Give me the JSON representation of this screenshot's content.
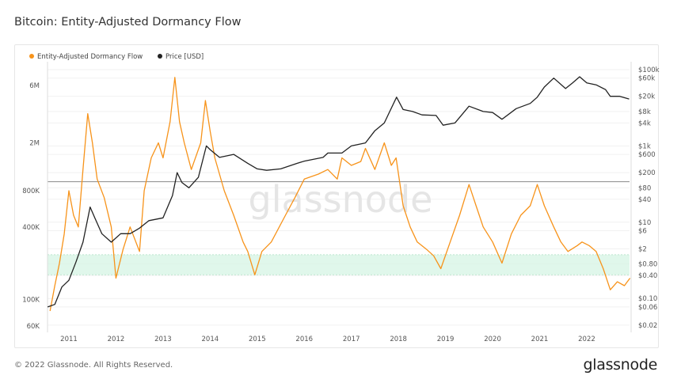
{
  "title": "Bitcoin: Entity-Adjusted Dormancy Flow",
  "footer": "© 2022 Glassnode. All Rights Reserved.",
  "logo": "glassnode",
  "watermark": "glassnode",
  "chart_data": {
    "type": "line",
    "title": "Bitcoin: Entity-Adjusted Dormancy Flow",
    "legend_placement": "top-left",
    "grid": true,
    "x_ticks": [
      "2011",
      "2012",
      "2013",
      "2014",
      "2015",
      "2016",
      "2017",
      "2018",
      "2019",
      "2020",
      "2021",
      "2022"
    ],
    "xlim": [
      2010.55,
      2022.95
    ],
    "left_axis": {
      "scale": "log",
      "ylim": [
        55000,
        8000000
      ],
      "ticks": [
        {
          "v": 6000000,
          "label": "6M"
        },
        {
          "v": 2000000,
          "label": "2M"
        },
        {
          "v": 800000,
          "label": "800K"
        },
        {
          "v": 400000,
          "label": "400K"
        },
        {
          "v": 100000,
          "label": "100K"
        },
        {
          "v": 60000,
          "label": "60K"
        }
      ]
    },
    "right_axis": {
      "scale": "log",
      "ylim": [
        0.02,
        100000
      ],
      "ticks": [
        {
          "v": 100000,
          "label": "$100k"
        },
        {
          "v": 60000,
          "label": "$60k"
        },
        {
          "v": 20000,
          "label": "$20k"
        },
        {
          "v": 8000,
          "label": "$8k"
        },
        {
          "v": 4000,
          "label": "$4k"
        },
        {
          "v": 1000,
          "label": "$1k"
        },
        {
          "v": 600,
          "label": "$600"
        },
        {
          "v": 200,
          "label": "$200"
        },
        {
          "v": 80,
          "label": "$80"
        },
        {
          "v": 40,
          "label": "$40"
        },
        {
          "v": 10,
          "label": "$10"
        },
        {
          "v": 6,
          "label": "$6"
        },
        {
          "v": 2,
          "label": "$2"
        },
        {
          "v": 0.8,
          "label": "$0.80"
        },
        {
          "v": 0.4,
          "label": "$0.40"
        },
        {
          "v": 0.1,
          "label": "$0.10"
        },
        {
          "v": 0.06,
          "label": "$0.06"
        },
        {
          "v": 0.02,
          "label": "$0.02"
        }
      ]
    },
    "reference_line": 950000,
    "band": [
      160000,
      235000
    ],
    "colors": {
      "dormancy": "#f7931a",
      "price": "#222222",
      "band": "#d8f5e6",
      "ref": "#888888"
    },
    "series": [
      {
        "name": "Entity-Adjusted Dormancy Flow",
        "axis": "left",
        "points": [
          [
            2010.6,
            80000
          ],
          [
            2010.7,
            130000
          ],
          [
            2010.8,
            200000
          ],
          [
            2010.9,
            350000
          ],
          [
            2011.0,
            800000
          ],
          [
            2011.1,
            500000
          ],
          [
            2011.2,
            400000
          ],
          [
            2011.3,
            1200000
          ],
          [
            2011.4,
            3500000
          ],
          [
            2011.5,
            2000000
          ],
          [
            2011.6,
            1000000
          ],
          [
            2011.75,
            700000
          ],
          [
            2011.9,
            400000
          ],
          [
            2012.0,
            150000
          ],
          [
            2012.15,
            260000
          ],
          [
            2012.3,
            400000
          ],
          [
            2012.5,
            250000
          ],
          [
            2012.6,
            800000
          ],
          [
            2012.75,
            1500000
          ],
          [
            2012.9,
            2000000
          ],
          [
            2013.0,
            1500000
          ],
          [
            2013.15,
            3000000
          ],
          [
            2013.25,
            7000000
          ],
          [
            2013.35,
            3000000
          ],
          [
            2013.45,
            2000000
          ],
          [
            2013.6,
            1200000
          ],
          [
            2013.8,
            2000000
          ],
          [
            2013.9,
            4500000
          ],
          [
            2014.0,
            2500000
          ],
          [
            2014.1,
            1500000
          ],
          [
            2014.3,
            800000
          ],
          [
            2014.5,
            500000
          ],
          [
            2014.7,
            300000
          ],
          [
            2014.8,
            250000
          ],
          [
            2014.95,
            160000
          ],
          [
            2015.1,
            250000
          ],
          [
            2015.3,
            300000
          ],
          [
            2015.6,
            500000
          ],
          [
            2015.8,
            700000
          ],
          [
            2016.0,
            1000000
          ],
          [
            2016.3,
            1100000
          ],
          [
            2016.5,
            1200000
          ],
          [
            2016.7,
            1000000
          ],
          [
            2016.8,
            1500000
          ],
          [
            2017.0,
            1300000
          ],
          [
            2017.2,
            1400000
          ],
          [
            2017.3,
            1800000
          ],
          [
            2017.5,
            1200000
          ],
          [
            2017.7,
            2000000
          ],
          [
            2017.85,
            1300000
          ],
          [
            2017.95,
            1500000
          ],
          [
            2018.1,
            600000
          ],
          [
            2018.25,
            400000
          ],
          [
            2018.4,
            300000
          ],
          [
            2018.6,
            260000
          ],
          [
            2018.75,
            230000
          ],
          [
            2018.9,
            180000
          ],
          [
            2019.1,
            300000
          ],
          [
            2019.3,
            500000
          ],
          [
            2019.5,
            900000
          ],
          [
            2019.65,
            600000
          ],
          [
            2019.8,
            400000
          ],
          [
            2020.0,
            300000
          ],
          [
            2020.2,
            200000
          ],
          [
            2020.4,
            350000
          ],
          [
            2020.6,
            500000
          ],
          [
            2020.8,
            600000
          ],
          [
            2020.95,
            900000
          ],
          [
            2021.1,
            600000
          ],
          [
            2021.3,
            400000
          ],
          [
            2021.45,
            300000
          ],
          [
            2021.6,
            250000
          ],
          [
            2021.8,
            280000
          ],
          [
            2021.9,
            300000
          ],
          [
            2022.05,
            280000
          ],
          [
            2022.2,
            250000
          ],
          [
            2022.35,
            180000
          ],
          [
            2022.5,
            120000
          ],
          [
            2022.65,
            140000
          ],
          [
            2022.8,
            130000
          ],
          [
            2022.92,
            150000
          ]
        ]
      },
      {
        "name": "Price [USD]",
        "axis": "right",
        "points": [
          [
            2010.55,
            0.06
          ],
          [
            2010.7,
            0.07
          ],
          [
            2010.85,
            0.2
          ],
          [
            2011.0,
            0.3
          ],
          [
            2011.15,
            0.9
          ],
          [
            2011.3,
            3
          ],
          [
            2011.45,
            25
          ],
          [
            2011.55,
            13
          ],
          [
            2011.7,
            5
          ],
          [
            2011.9,
            3
          ],
          [
            2012.1,
            5
          ],
          [
            2012.3,
            5
          ],
          [
            2012.5,
            7
          ],
          [
            2012.7,
            11
          ],
          [
            2013.0,
            13
          ],
          [
            2013.2,
            50
          ],
          [
            2013.3,
            200
          ],
          [
            2013.4,
            110
          ],
          [
            2013.55,
            80
          ],
          [
            2013.75,
            150
          ],
          [
            2013.92,
            1000
          ],
          [
            2014.0,
            800
          ],
          [
            2014.2,
            500
          ],
          [
            2014.5,
            600
          ],
          [
            2014.8,
            350
          ],
          [
            2015.0,
            250
          ],
          [
            2015.2,
            230
          ],
          [
            2015.5,
            250
          ],
          [
            2015.85,
            350
          ],
          [
            2016.0,
            400
          ],
          [
            2016.4,
            500
          ],
          [
            2016.5,
            650
          ],
          [
            2016.8,
            650
          ],
          [
            2017.0,
            1000
          ],
          [
            2017.3,
            1200
          ],
          [
            2017.5,
            2500
          ],
          [
            2017.7,
            4000
          ],
          [
            2017.96,
            19000
          ],
          [
            2018.1,
            9000
          ],
          [
            2018.3,
            8000
          ],
          [
            2018.5,
            6500
          ],
          [
            2018.8,
            6300
          ],
          [
            2018.95,
            3500
          ],
          [
            2019.2,
            4000
          ],
          [
            2019.5,
            11000
          ],
          [
            2019.8,
            8000
          ],
          [
            2020.0,
            7500
          ],
          [
            2020.2,
            5000
          ],
          [
            2020.5,
            9500
          ],
          [
            2020.8,
            13000
          ],
          [
            2020.95,
            19000
          ],
          [
            2021.1,
            35000
          ],
          [
            2021.3,
            60000
          ],
          [
            2021.55,
            32000
          ],
          [
            2021.7,
            45000
          ],
          [
            2021.85,
            65000
          ],
          [
            2022.0,
            45000
          ],
          [
            2022.2,
            40000
          ],
          [
            2022.4,
            30000
          ],
          [
            2022.5,
            20000
          ],
          [
            2022.7,
            20000
          ],
          [
            2022.9,
            17000
          ]
        ]
      }
    ]
  }
}
